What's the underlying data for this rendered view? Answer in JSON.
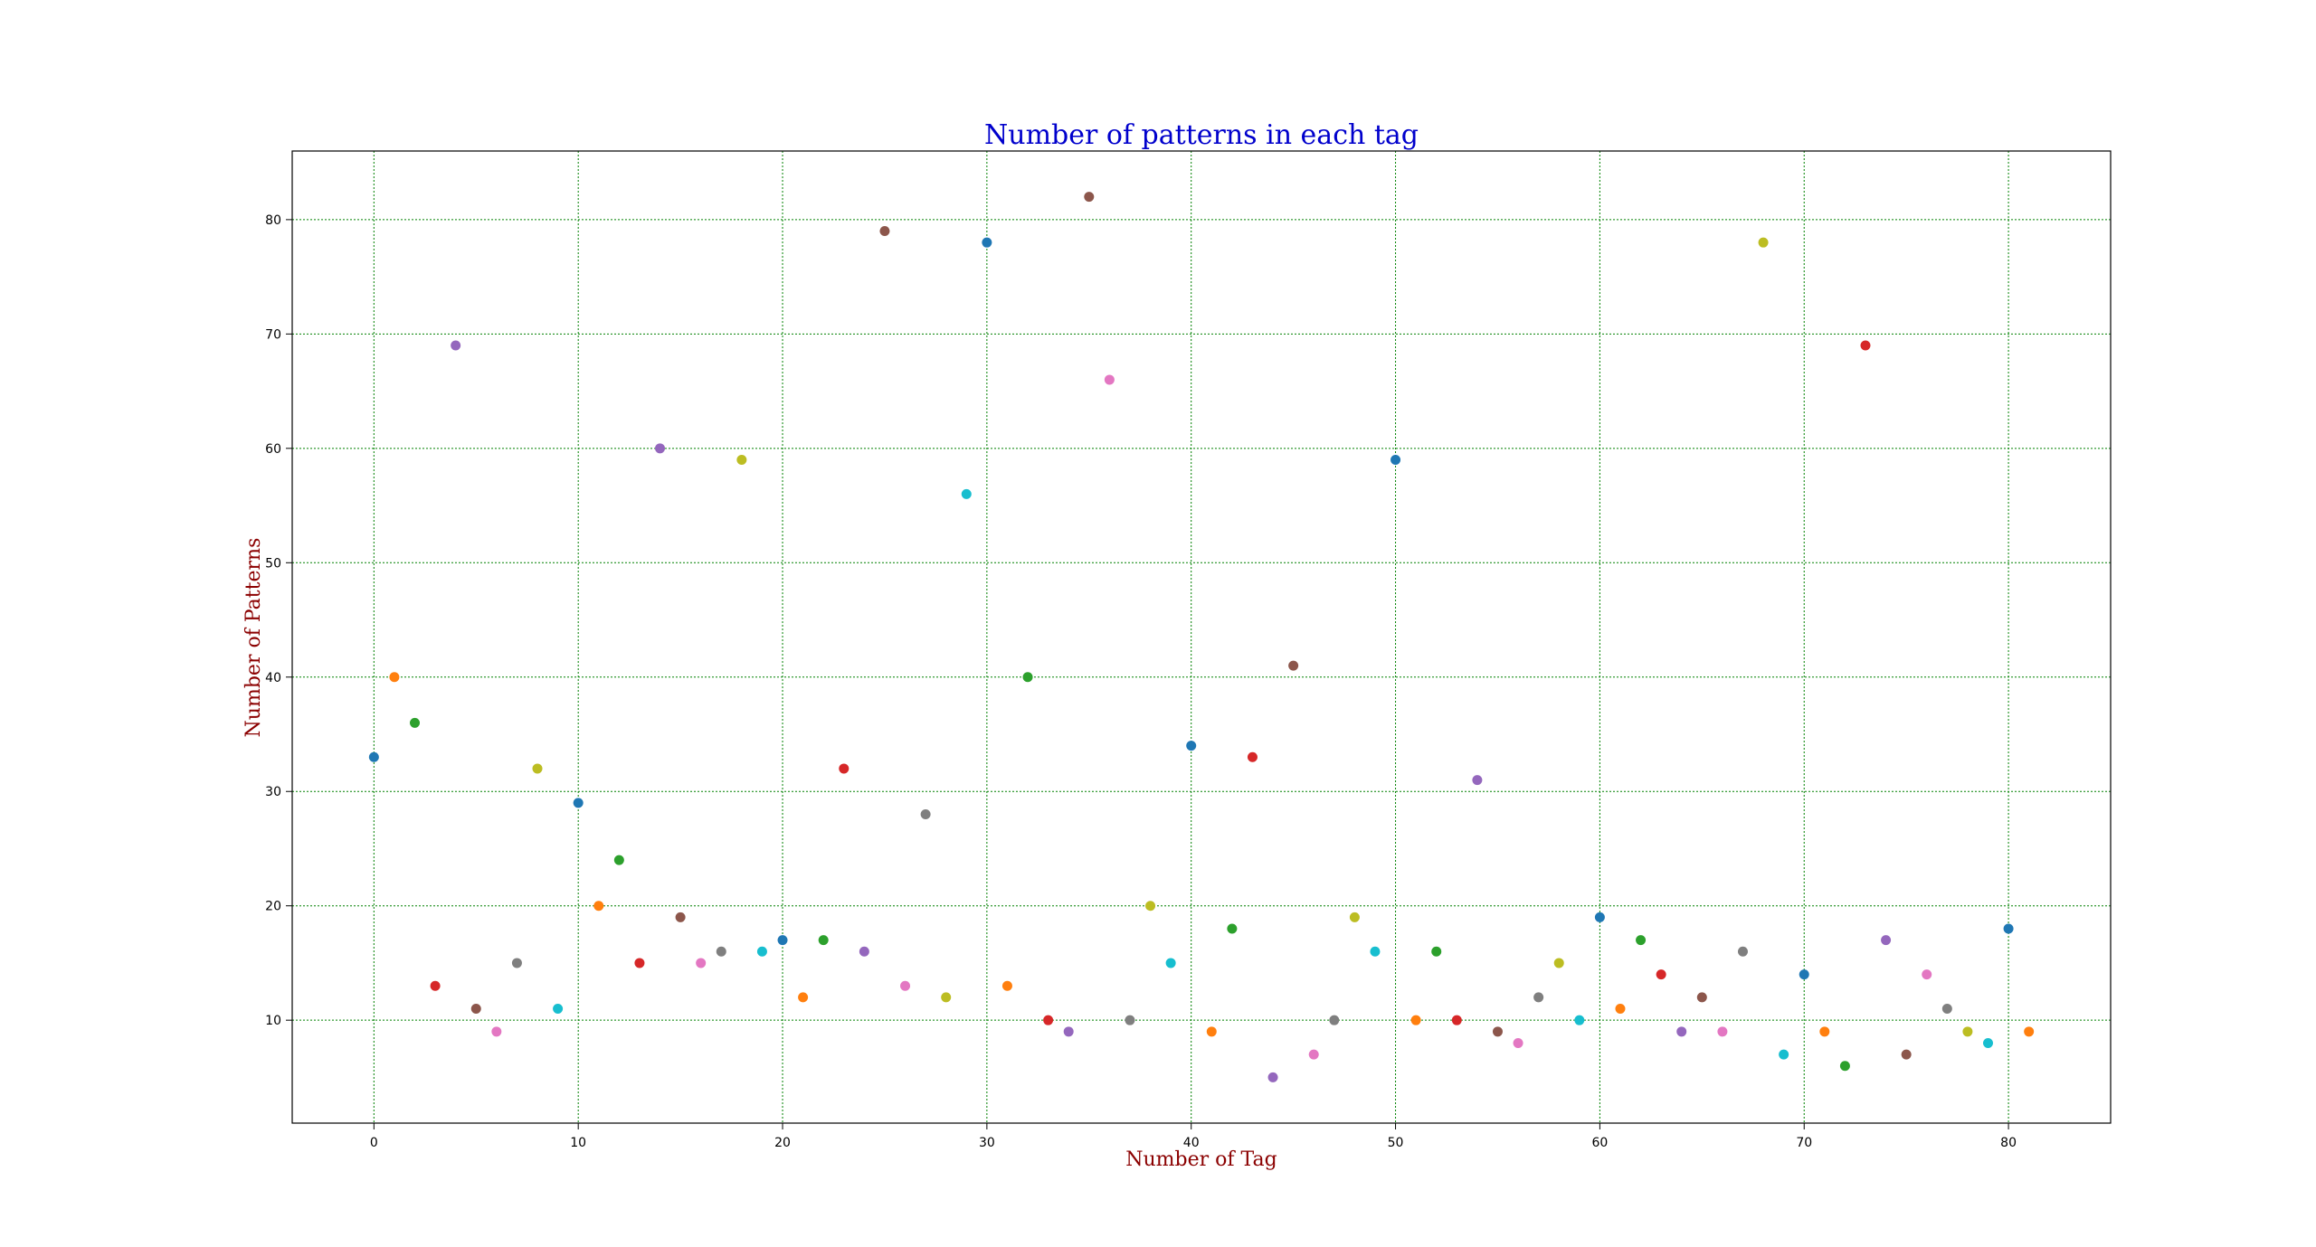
{
  "chart_data": {
    "type": "scatter",
    "title": "Number of patterns in each tag",
    "xlabel": "Number of Tag",
    "ylabel": "Number of Patterns",
    "xlim": [
      -4,
      85
    ],
    "ylim": [
      1,
      86
    ],
    "xticks": [
      0,
      10,
      20,
      30,
      40,
      50,
      60,
      70,
      80
    ],
    "yticks": [
      10,
      20,
      30,
      40,
      50,
      60,
      70,
      80
    ],
    "grid": true,
    "colors": {
      "title": "#0000cc",
      "axis_label": "#8b0000",
      "grid": "#008000",
      "palette": [
        "#1f77b4",
        "#ff7f0e",
        "#2ca02c",
        "#d62728",
        "#9467bd",
        "#8c564b",
        "#e377c2",
        "#7f7f7f",
        "#bcbd22",
        "#17becf"
      ]
    },
    "x": [
      0,
      1,
      2,
      3,
      4,
      5,
      6,
      7,
      8,
      9,
      10,
      11,
      12,
      13,
      14,
      15,
      16,
      17,
      18,
      19,
      20,
      21,
      22,
      23,
      24,
      25,
      26,
      27,
      28,
      29,
      30,
      31,
      32,
      33,
      34,
      35,
      36,
      37,
      38,
      39,
      40,
      41,
      42,
      43,
      44,
      45,
      46,
      47,
      48,
      49,
      50,
      51,
      52,
      53,
      54,
      55,
      56,
      57,
      58,
      59,
      60,
      61,
      62,
      63,
      64,
      65,
      66,
      67,
      68,
      69,
      70,
      71,
      72,
      73,
      74,
      75,
      76,
      77,
      78,
      79,
      80,
      81
    ],
    "y": [
      33,
      40,
      36,
      13,
      69,
      11,
      9,
      15,
      32,
      11,
      29,
      20,
      24,
      15,
      60,
      19,
      15,
      16,
      59,
      16,
      17,
      12,
      17,
      32,
      16,
      79,
      13,
      28,
      12,
      56,
      78,
      13,
      40,
      10,
      9,
      82,
      66,
      10,
      20,
      15,
      34,
      9,
      18,
      33,
      5,
      41,
      7,
      10,
      19,
      16,
      59,
      10,
      16,
      10,
      31,
      9,
      8,
      12,
      15,
      10,
      19,
      11,
      17,
      14,
      9,
      12,
      9,
      16,
      78,
      7,
      14,
      9,
      6,
      69,
      17,
      7,
      14,
      11,
      9,
      8,
      18,
      9
    ]
  }
}
